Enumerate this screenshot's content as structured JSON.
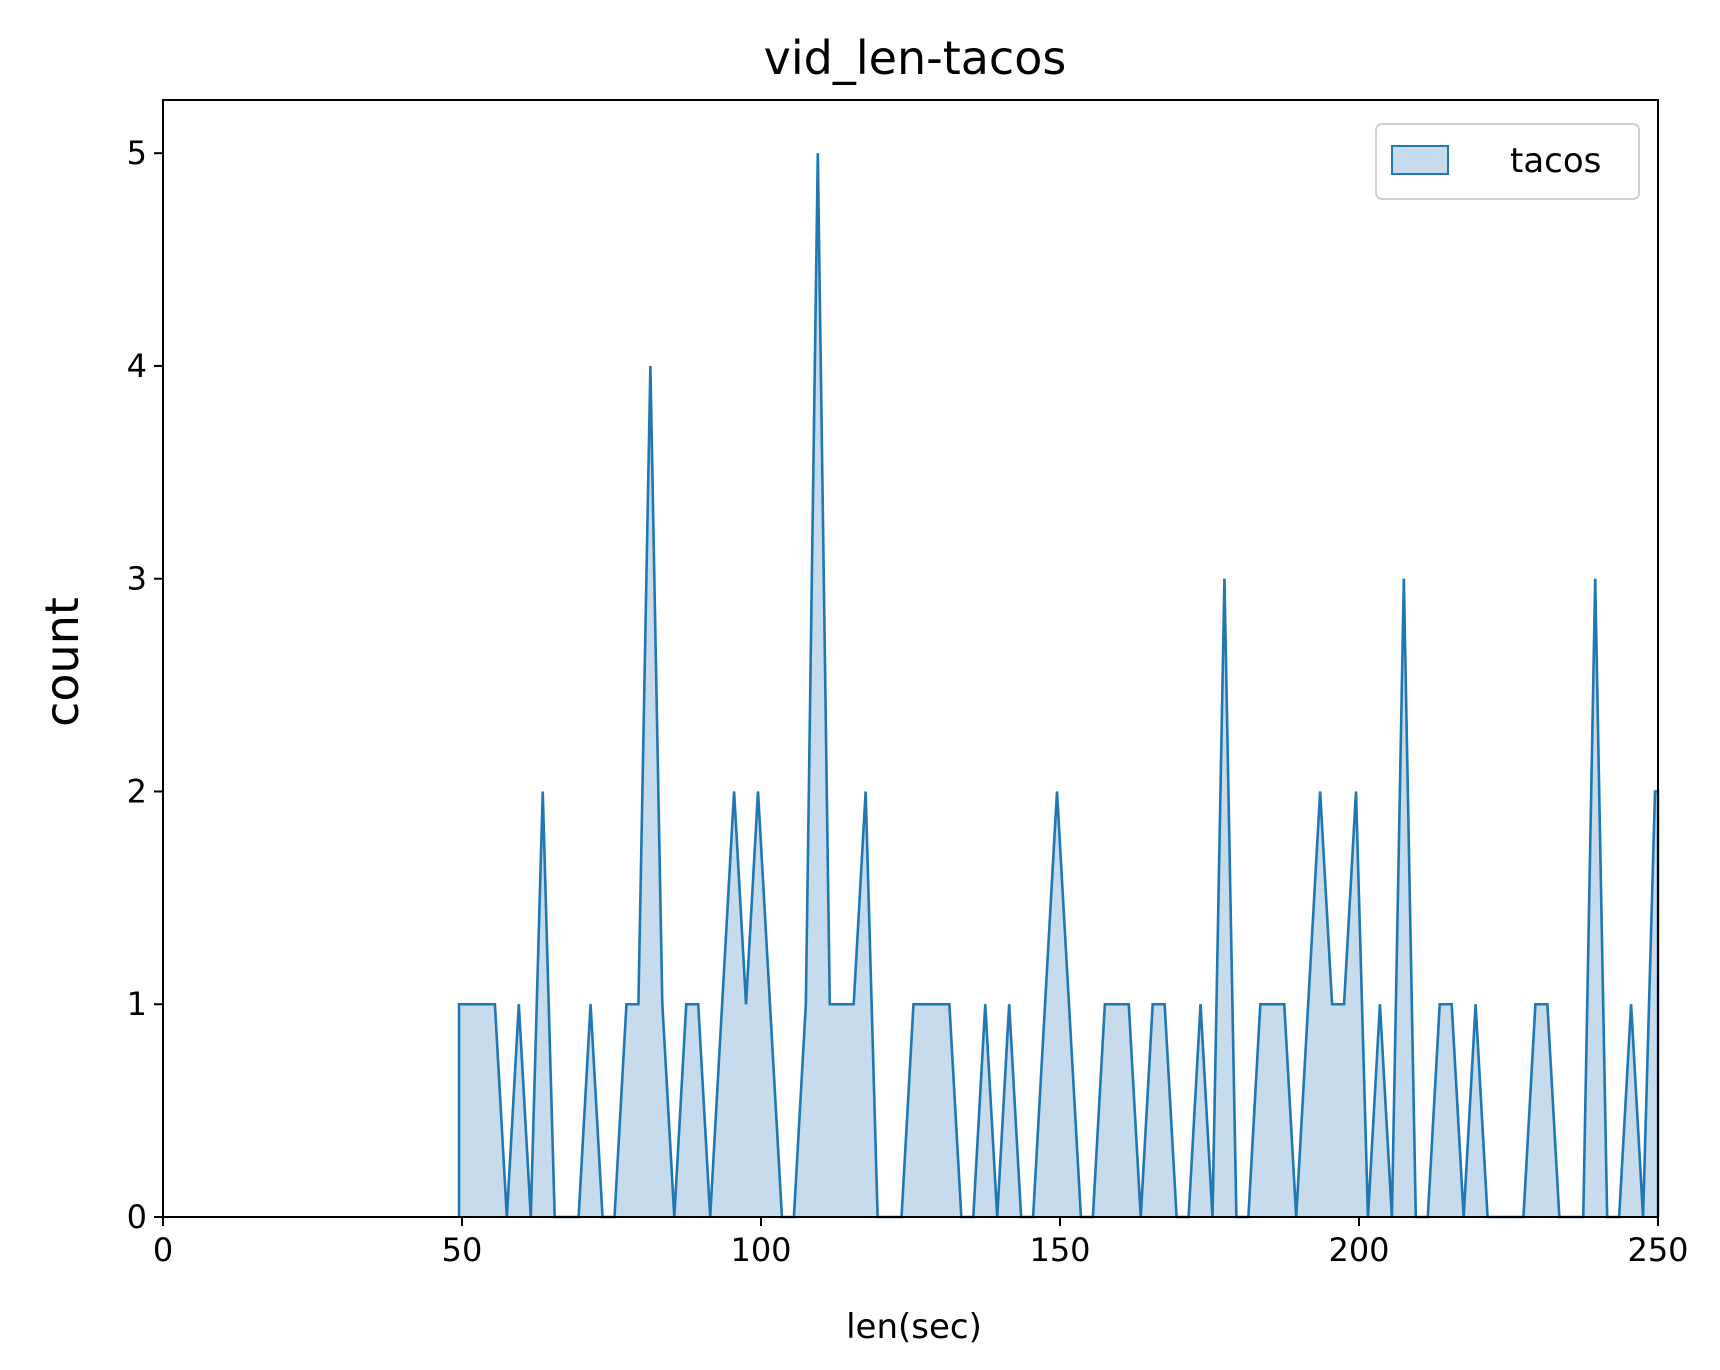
{
  "chart_data": {
    "type": "area",
    "title": "vid_len-tacos",
    "xlabel": "len(sec)",
    "ylabel": "count",
    "xlim": [
      0,
      250
    ],
    "ylim": [
      0,
      5.25
    ],
    "xticks": [
      0,
      50,
      100,
      150,
      200,
      250
    ],
    "yticks": [
      0,
      1,
      2,
      3,
      4,
      5
    ],
    "grid": false,
    "legend": {
      "placement": "top-right",
      "entries": [
        "tacos"
      ]
    },
    "colors": {
      "line": "#1f77b4",
      "fill": "#c6dbec"
    },
    "series": [
      {
        "name": "tacos",
        "points": [
          [
            49.5,
            0
          ],
          [
            49.5,
            1
          ],
          [
            55.5,
            1
          ],
          [
            57.5,
            0
          ],
          [
            59.5,
            1
          ],
          [
            61.5,
            0
          ],
          [
            63.5,
            2
          ],
          [
            65.5,
            0
          ],
          [
            69.5,
            0
          ],
          [
            71.5,
            1
          ],
          [
            73.5,
            0
          ],
          [
            75.5,
            0
          ],
          [
            77.5,
            1
          ],
          [
            79.5,
            1
          ],
          [
            81.5,
            4
          ],
          [
            83.5,
            1
          ],
          [
            85.5,
            0
          ],
          [
            87.5,
            1
          ],
          [
            89.5,
            1
          ],
          [
            91.5,
            0
          ],
          [
            95.5,
            2
          ],
          [
            97.5,
            1
          ],
          [
            99.5,
            2
          ],
          [
            103.5,
            0
          ],
          [
            105.5,
            0
          ],
          [
            107.5,
            1
          ],
          [
            109.5,
            5
          ],
          [
            111.5,
            1
          ],
          [
            115.5,
            1
          ],
          [
            117.5,
            2
          ],
          [
            119.5,
            0
          ],
          [
            123.5,
            0
          ],
          [
            125.5,
            1
          ],
          [
            131.5,
            1
          ],
          [
            133.5,
            0
          ],
          [
            135.5,
            0
          ],
          [
            137.5,
            1
          ],
          [
            139.5,
            0
          ],
          [
            141.5,
            1
          ],
          [
            143.5,
            0
          ],
          [
            145.5,
            0
          ],
          [
            149.5,
            2
          ],
          [
            153.5,
            0
          ],
          [
            155.5,
            0
          ],
          [
            157.5,
            1
          ],
          [
            161.5,
            1
          ],
          [
            163.5,
            0
          ],
          [
            165.5,
            1
          ],
          [
            167.5,
            1
          ],
          [
            169.5,
            0
          ],
          [
            171.5,
            0
          ],
          [
            173.5,
            1
          ],
          [
            175.5,
            0
          ],
          [
            177.5,
            3
          ],
          [
            179.5,
            0
          ],
          [
            181.5,
            0
          ],
          [
            183.5,
            1
          ],
          [
            187.5,
            1
          ],
          [
            189.5,
            0
          ],
          [
            193.5,
            2
          ],
          [
            195.5,
            1
          ],
          [
            197.5,
            1
          ],
          [
            199.5,
            2
          ],
          [
            201.5,
            0
          ],
          [
            203.5,
            1
          ],
          [
            205.5,
            0
          ],
          [
            207.5,
            3
          ],
          [
            209.5,
            0
          ],
          [
            211.5,
            0
          ],
          [
            213.5,
            1
          ],
          [
            215.5,
            1
          ],
          [
            217.5,
            0
          ],
          [
            219.5,
            1
          ],
          [
            221.5,
            0
          ],
          [
            227.5,
            0
          ],
          [
            229.5,
            1
          ],
          [
            231.5,
            1
          ],
          [
            233.5,
            0
          ],
          [
            237.5,
            0
          ],
          [
            239.5,
            3
          ],
          [
            241.5,
            0
          ],
          [
            243.5,
            0
          ],
          [
            245.5,
            1
          ],
          [
            247.5,
            0
          ],
          [
            249.5,
            2
          ],
          [
            250,
            2
          ],
          [
            250,
            0
          ]
        ]
      }
    ]
  }
}
